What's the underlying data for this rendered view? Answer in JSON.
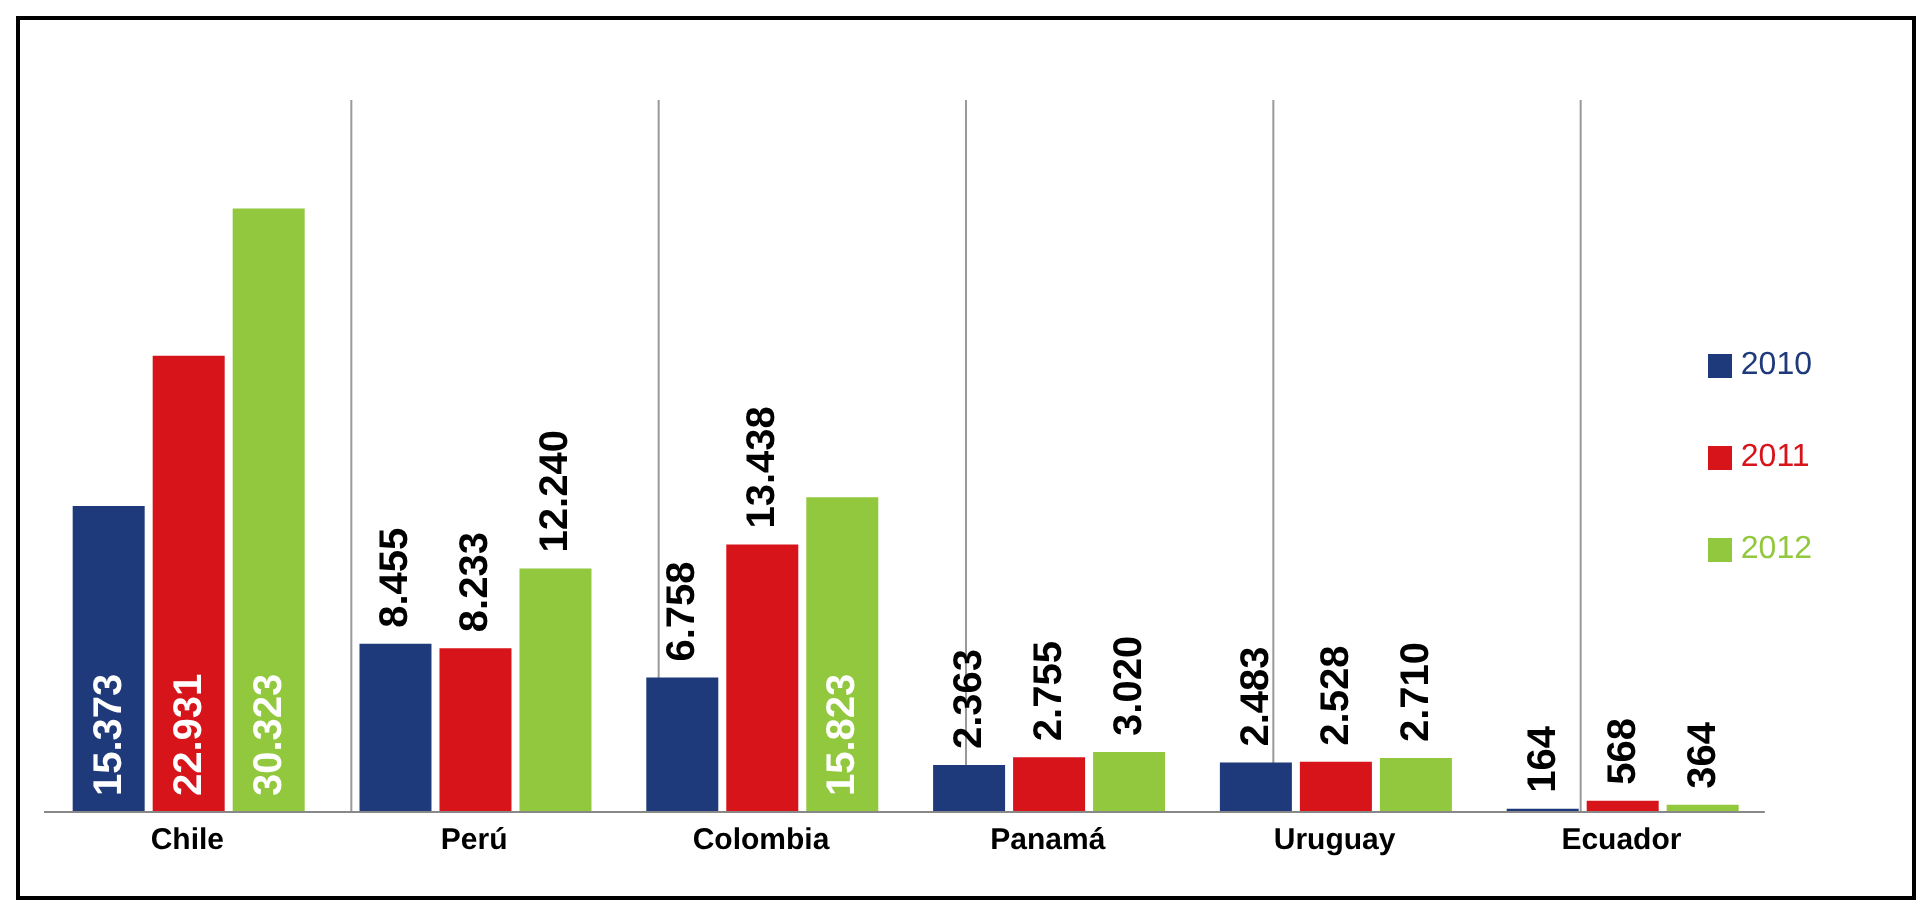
{
  "chart_data": {
    "type": "bar",
    "categories": [
      "Chile",
      "Perú",
      "Colombia",
      "Panamá",
      "Uruguay",
      "Ecuador"
    ],
    "series": [
      {
        "name": "2010",
        "color": "#1f3a7a",
        "values": [
          15373,
          8455,
          6758,
          2363,
          2483,
          164
        ],
        "value_labels": [
          "15.373",
          "8.455",
          "6.758",
          "2.363",
          "2.483",
          "164"
        ]
      },
      {
        "name": "2011",
        "color": "#d7141a",
        "values": [
          22931,
          8233,
          13438,
          2755,
          2528,
          568
        ],
        "value_labels": [
          "22.931",
          "8.233",
          "13.438",
          "2.755",
          "2.528",
          "568"
        ]
      },
      {
        "name": "2012",
        "color": "#92c83e",
        "values": [
          30323,
          12240,
          15823,
          3020,
          2710,
          364
        ],
        "value_labels": [
          "30.323",
          "12.240",
          "15.823",
          "3.020",
          "2.710",
          "364"
        ]
      }
    ],
    "grid": "x",
    "legend": "right"
  }
}
